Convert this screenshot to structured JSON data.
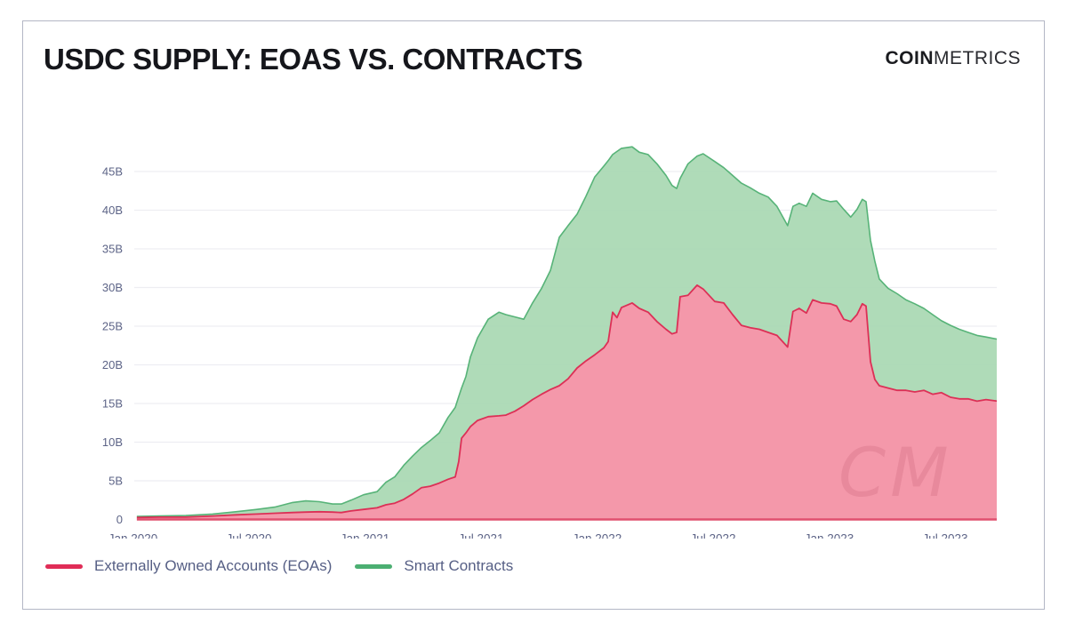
{
  "header": {
    "title": "USDC SUPPLY: EOAS VS. CONTRACTS",
    "brand_bold": "COIN",
    "brand_light": "METRICS"
  },
  "watermark": "CM",
  "legend": {
    "eoa_label": "Externally Owned Accounts (EOAs)",
    "smart_label": "Smart Contracts"
  },
  "colors": {
    "eoa_line": "#dc3056",
    "eoa_fill": "#f495a7",
    "smart_line": "#57b378",
    "smart_fill": "#abd9b4",
    "axis_text": "#5d6487",
    "gridline": "#ededf2",
    "card_border": "#b3b7c5"
  },
  "chart_data": {
    "type": "area",
    "stacked": true,
    "title": "USDC SUPPLY: EOAS VS. CONTRACTS",
    "unit": "billions of USDC",
    "xlabel": "",
    "ylabel": "",
    "grid": true,
    "legend_position": "bottom",
    "ylim": [
      0,
      48.5
    ],
    "y_tick_values": [
      0,
      5,
      10,
      15,
      20,
      25,
      30,
      35,
      40,
      45
    ],
    "y_tick_labels": [
      "0",
      "5B",
      "10B",
      "15B",
      "20B",
      "25B",
      "30B",
      "35B",
      "40B",
      "45B"
    ],
    "x_tick_dates": [
      2020.0,
      2020.5,
      2021.0,
      2021.5,
      2022.0,
      2022.5,
      2023.0,
      2023.5
    ],
    "x_tick_labels": [
      "Jan 2020",
      "Jul 2020",
      "Jan 2021",
      "Jul 2021",
      "Jan 2022",
      "Jul 2022",
      "Jan 2023",
      "Jul 2023"
    ],
    "x": [
      2020.017,
      2020.113,
      2020.228,
      2020.343,
      2020.443,
      2020.534,
      2020.611,
      2020.688,
      2020.745,
      2020.803,
      2020.86,
      2020.898,
      2020.94,
      2020.994,
      2021.052,
      2021.09,
      2021.128,
      2021.167,
      2021.205,
      2021.243,
      2021.281,
      2021.32,
      2021.358,
      2021.389,
      2021.404,
      2021.416,
      2021.435,
      2021.454,
      2021.485,
      2021.531,
      2021.577,
      2021.607,
      2021.646,
      2021.684,
      2021.722,
      2021.761,
      2021.799,
      2021.837,
      2021.875,
      2021.914,
      2021.952,
      2021.99,
      2022.029,
      2022.048,
      2022.067,
      2022.086,
      2022.105,
      2022.151,
      2022.182,
      2022.22,
      2022.258,
      2022.297,
      2022.323,
      2022.343,
      2022.358,
      2022.392,
      2022.431,
      2022.457,
      2022.507,
      2022.546,
      2022.584,
      2022.622,
      2022.66,
      2022.699,
      2022.737,
      2022.775,
      2022.821,
      2022.844,
      2022.871,
      2022.902,
      2022.929,
      2022.967,
      2023.005,
      2023.032,
      2023.063,
      2023.093,
      2023.12,
      2023.143,
      2023.159,
      2023.178,
      2023.197,
      2023.216,
      2023.254,
      2023.293,
      2023.331,
      2023.369,
      2023.408,
      2023.446,
      2023.484,
      2023.523,
      2023.561,
      2023.599,
      2023.637,
      2023.676,
      2023.726
    ],
    "series": [
      {
        "name": "Externally Owned Accounts (EOAs)",
        "color": "#dc3056",
        "fill": "#f495a7",
        "values": [
          0.25,
          0.3,
          0.3,
          0.45,
          0.6,
          0.7,
          0.8,
          0.9,
          0.95,
          1.0,
          0.95,
          0.9,
          1.1,
          1.3,
          1.5,
          1.9,
          2.1,
          2.6,
          3.3,
          4.1,
          4.3,
          4.7,
          5.2,
          5.5,
          7.5,
          10.5,
          11.2,
          12.0,
          12.8,
          13.3,
          13.4,
          13.5,
          14.0,
          14.7,
          15.5,
          16.2,
          16.8,
          17.3,
          18.2,
          19.6,
          20.5,
          21.3,
          22.2,
          23.0,
          26.8,
          26.1,
          27.4,
          28.0,
          27.3,
          26.8,
          25.6,
          24.6,
          24.0,
          24.2,
          28.8,
          29.0,
          30.3,
          29.8,
          28.2,
          28.0,
          26.5,
          25.1,
          24.8,
          24.6,
          24.2,
          23.8,
          22.3,
          26.9,
          27.3,
          26.7,
          28.4,
          28.0,
          27.9,
          27.6,
          25.9,
          25.6,
          26.5,
          27.9,
          27.6,
          20.4,
          18.1,
          17.3,
          17.0,
          16.7,
          16.7,
          16.5,
          16.7,
          16.2,
          16.4,
          15.8,
          15.6,
          15.6,
          15.3,
          15.5,
          15.3
        ]
      },
      {
        "name": "Smart Contracts",
        "color": "#57b378",
        "fill": "#abd9b4",
        "values": [
          0.15,
          0.15,
          0.2,
          0.25,
          0.4,
          0.6,
          0.8,
          1.3,
          1.45,
          1.3,
          1.05,
          1.1,
          1.4,
          1.9,
          2.1,
          2.9,
          3.4,
          4.4,
          4.9,
          5.2,
          5.9,
          6.5,
          8.0,
          9.0,
          8.4,
          6.5,
          7.3,
          9.0,
          10.7,
          12.6,
          13.4,
          13.0,
          12.2,
          11.2,
          12.5,
          13.7,
          15.4,
          19.2,
          19.8,
          19.9,
          21.3,
          23.0,
          23.5,
          23.4,
          20.4,
          21.5,
          20.6,
          20.2,
          20.2,
          20.4,
          20.4,
          19.9,
          19.2,
          18.6,
          15.3,
          17.0,
          16.7,
          17.5,
          18.1,
          17.5,
          18.0,
          18.4,
          18.1,
          17.6,
          17.5,
          16.7,
          15.7,
          13.6,
          13.6,
          13.8,
          13.8,
          13.4,
          13.2,
          13.6,
          14.2,
          13.5,
          13.6,
          13.5,
          13.5,
          15.7,
          15.3,
          13.8,
          12.9,
          12.5,
          11.7,
          11.4,
          10.6,
          10.3,
          9.3,
          9.3,
          9.0,
          8.6,
          8.5,
          8.1,
          8.0
        ]
      }
    ]
  }
}
